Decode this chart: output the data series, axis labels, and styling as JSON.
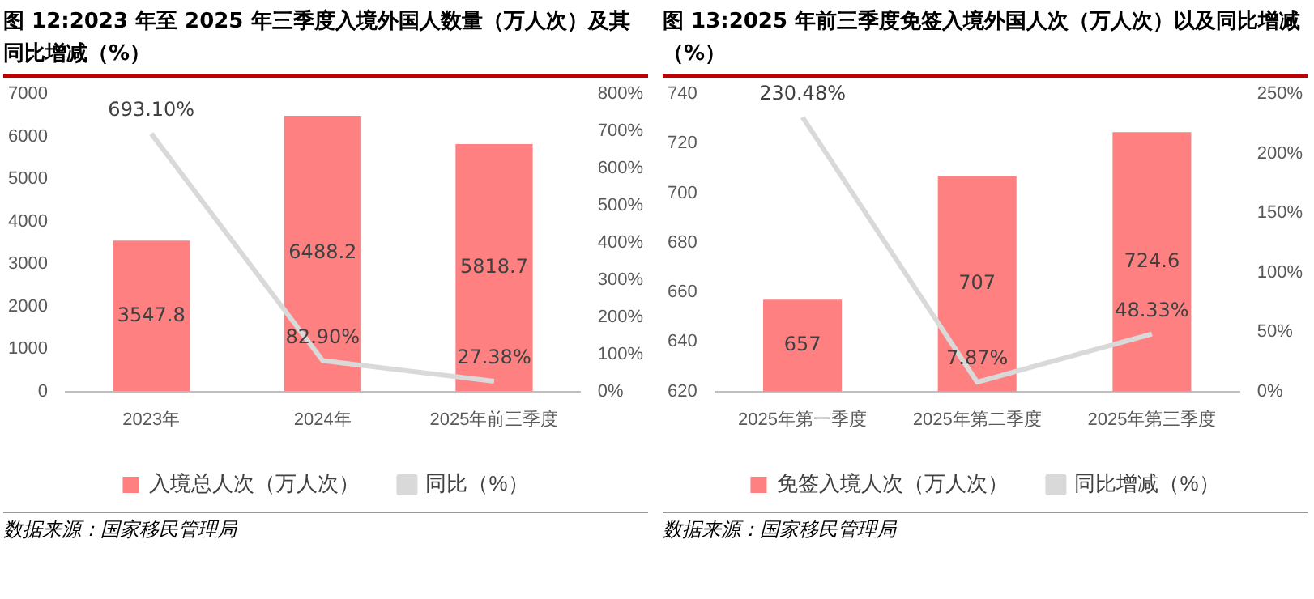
{
  "chart_data": [
    {
      "type": "bar",
      "title": "图 12:2023 年至 2025 年三季度入境外国人数量（万人次）及其同比增减（%）",
      "categories": [
        "2023年",
        "2024年",
        "2025年前三季度"
      ],
      "series": [
        {
          "name": "入境总人次（万人次）",
          "color": "#fe8081",
          "values": [
            3547.8,
            6488.2,
            5818.7
          ],
          "value_labels": [
            "3547.8",
            "6488.2",
            "5818.7"
          ]
        },
        {
          "name": "同比（%）",
          "type": "line",
          "axis": "y2",
          "color": "#d9d9d9",
          "values": [
            693.1,
            82.9,
            27.38
          ],
          "value_labels": [
            "693.10%",
            "82.90%",
            "27.38%"
          ]
        }
      ],
      "grid": false,
      "legend": "bottom",
      "ylim": [
        0,
        7000
      ],
      "yticks": [
        0,
        1000,
        2000,
        3000,
        4000,
        5000,
        6000,
        7000
      ],
      "y2lim": [
        0,
        800
      ],
      "y2ticks": [
        {
          "value": 0,
          "label": "0%"
        },
        {
          "value": 100,
          "label": "100%"
        },
        {
          "value": 200,
          "label": "200%"
        },
        {
          "value": 300,
          "label": "300%"
        },
        {
          "value": 400,
          "label": "400%"
        },
        {
          "value": 500,
          "label": "500%"
        },
        {
          "value": 600,
          "label": "600%"
        },
        {
          "value": 700,
          "label": "700%"
        },
        {
          "value": 800,
          "label": "800%"
        }
      ],
      "annotations": [
        "数据来源：国家移民管理局"
      ]
    },
    {
      "type": "bar",
      "title": "图 13:2025 年前三季度免签入境外国人次（万人次）以及同比增减（%）",
      "categories": [
        "2025年第一季度",
        "2025年第二季度",
        "2025年第三季度"
      ],
      "series": [
        {
          "name": "免签入境人次（万人次）",
          "color": "#fe8081",
          "values": [
            657,
            707,
            724.6
          ],
          "value_labels": [
            "657",
            "707",
            "724.6"
          ]
        },
        {
          "name": "同比增减（%）",
          "type": "line",
          "axis": "y2",
          "color": "#d9d9d9",
          "values": [
            230.48,
            7.87,
            48.33
          ],
          "value_labels": [
            "230.48%",
            "7.87%",
            "48.33%"
          ]
        }
      ],
      "grid": false,
      "legend": "bottom",
      "ylim": [
        620,
        740
      ],
      "yticks": [
        620,
        640,
        660,
        680,
        700,
        720,
        740
      ],
      "y2lim": [
        0,
        250
      ],
      "y2ticks": [
        {
          "value": 0,
          "label": "0%"
        },
        {
          "value": 50,
          "label": "50%"
        },
        {
          "value": 100,
          "label": "100%"
        },
        {
          "value": 150,
          "label": "150%"
        },
        {
          "value": 200,
          "label": "200%"
        },
        {
          "value": 250,
          "label": "250%"
        }
      ],
      "annotations": [
        "数据来源：国家移民管理局"
      ]
    }
  ]
}
